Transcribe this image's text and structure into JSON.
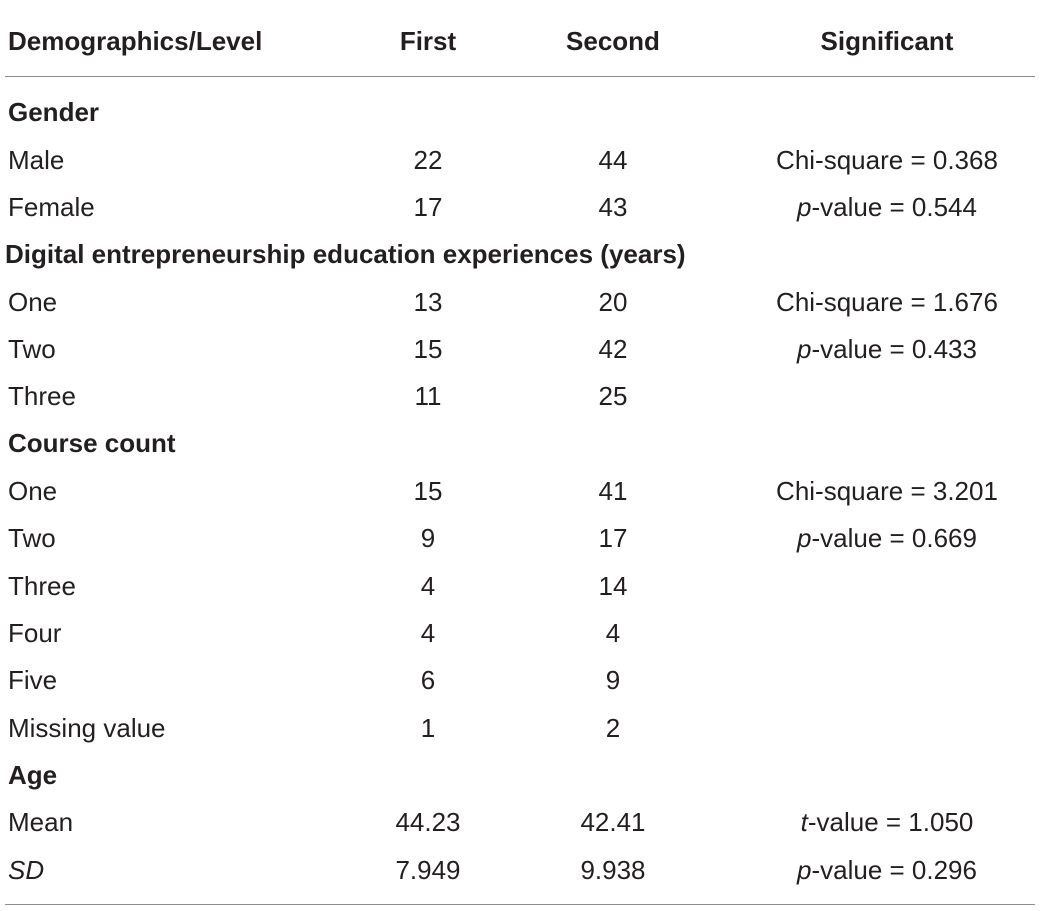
{
  "header": {
    "col_label": "Demographics/Level",
    "col_first": "First",
    "col_second": "Second",
    "col_significant": "Significant"
  },
  "sections": {
    "gender": {
      "title": "Gender",
      "rows": [
        {
          "label": "Male",
          "first": "22",
          "second": "44",
          "sig_stat": "Chi-square",
          "sig_value": "= 0.368"
        },
        {
          "label": "Female",
          "first": "17",
          "second": "43",
          "sig_stat": "p",
          "sig_value": "-value = 0.544"
        }
      ]
    },
    "experience": {
      "title": "Digital entrepreneurship education experiences (years)",
      "rows": [
        {
          "label": "One",
          "first": "13",
          "second": "20",
          "sig_stat": "Chi-square",
          "sig_value": "= 1.676"
        },
        {
          "label": "Two",
          "first": "15",
          "second": "42",
          "sig_stat": "p",
          "sig_value": "-value = 0.433"
        },
        {
          "label": "Three",
          "first": "11",
          "second": "25"
        }
      ]
    },
    "course_count": {
      "title": "Course count",
      "rows": [
        {
          "label": "One",
          "first": "15",
          "second": "41",
          "sig_stat": "Chi-square",
          "sig_value": "= 3.201"
        },
        {
          "label": "Two",
          "first": "9",
          "second": "17",
          "sig_stat": "p",
          "sig_value": "-value = 0.669"
        },
        {
          "label": "Three",
          "first": "4",
          "second": "14"
        },
        {
          "label": "Four",
          "first": "4",
          "second": "4"
        },
        {
          "label": "Five",
          "first": "6",
          "second": "9"
        },
        {
          "label": "Missing value",
          "first": "1",
          "second": "2"
        }
      ]
    },
    "age": {
      "title": "Age",
      "rows": [
        {
          "label": "Mean",
          "first": "44.23",
          "second": "42.41",
          "sig_stat": "t",
          "sig_value": "-value = 1.050"
        },
        {
          "label": "SD",
          "first": "7.949",
          "second": "9.938",
          "sig_stat": "p",
          "sig_value": "-value = 0.296"
        }
      ]
    }
  }
}
